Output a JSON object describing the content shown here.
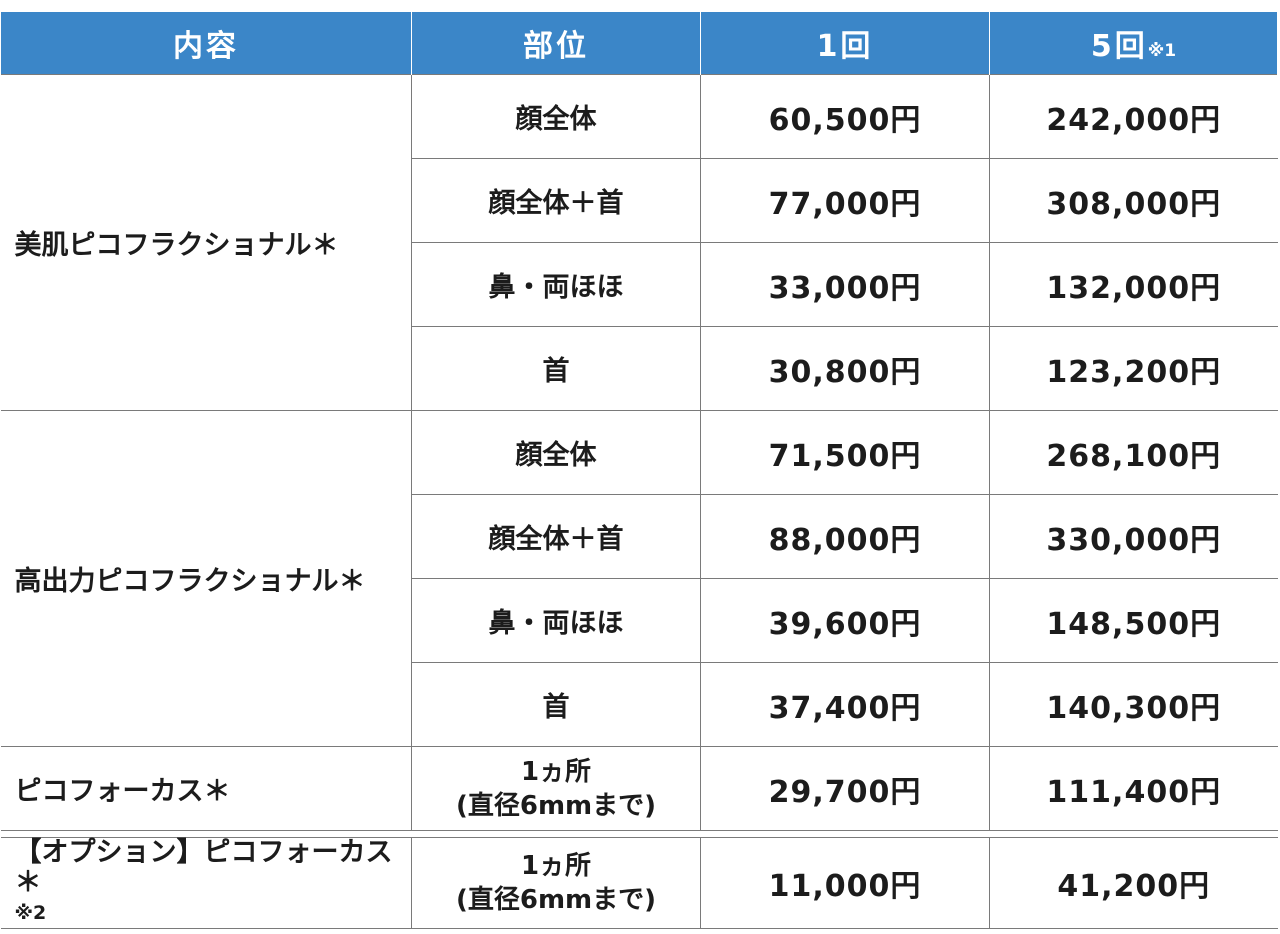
{
  "header": {
    "col1": "内容",
    "col2": "部位",
    "col3": "1回",
    "col4": "5回",
    "col4_note": "※1"
  },
  "groups": [
    {
      "name": "美肌ピコフラクショナル＊",
      "rows": [
        {
          "area": "顔全体",
          "once": "60,500円",
          "five": "242,000円"
        },
        {
          "area": "顔全体＋首",
          "once": "77,000円",
          "five": "308,000円"
        },
        {
          "area": "鼻・両ほほ",
          "once": "33,000円",
          "five": "132,000円"
        },
        {
          "area": "首",
          "once": "30,800円",
          "five": "123,200円"
        }
      ]
    },
    {
      "name": "高出力ピコフラクショナル＊",
      "rows": [
        {
          "area": "顔全体",
          "once": "71,500円",
          "five": "268,100円"
        },
        {
          "area": "顔全体＋首",
          "once": "88,000円",
          "five": "330,000円"
        },
        {
          "area": "鼻・両ほほ",
          "once": "39,600円",
          "five": "148,500円"
        },
        {
          "area": "首",
          "once": "37,400円",
          "five": "140,300円"
        }
      ]
    },
    {
      "name": "ピコフォーカス＊",
      "rows": [
        {
          "area_line1": "1ヵ所",
          "area_line2": "(直径6mmまで)",
          "once": "29,700円",
          "five": "111,400円"
        }
      ]
    }
  ],
  "option": {
    "name": "【オプション】ピコフォーカス＊",
    "note": "※2",
    "area_line1": "1ヵ所",
    "area_line2": "(直径6mmまで)",
    "once": "11,000円",
    "five": "41,200円"
  }
}
